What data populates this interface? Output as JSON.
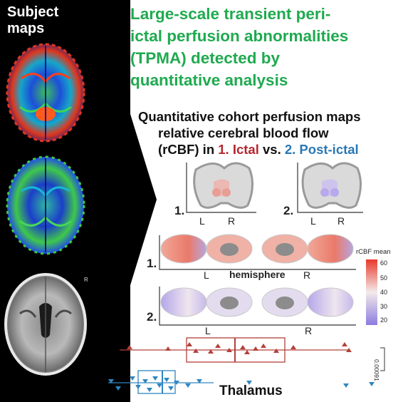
{
  "left_panel": {
    "title_line1": "Subject",
    "title_line2": "maps"
  },
  "headline": {
    "line1": "Large-scale transient peri-",
    "line2": "ictal perfusion abnormalities",
    "line3": "(TPMA) detected by",
    "line4": "quantitative analysis"
  },
  "subtitle": {
    "line1": "Quantitative cohort perfusion maps",
    "line2": "relative cerebral blood flow",
    "line3_prefix": "(rCBF) in ",
    "ictal": "1. Ictal",
    "vs": " vs. ",
    "postictal": "2. Post-ictal"
  },
  "coronal": {
    "label1": "1.",
    "label2": "2.",
    "L": "L",
    "R": "R"
  },
  "surface": {
    "row1_label": "1.",
    "row2_label": "2.",
    "hemisphere": "hemisphere",
    "L": "L",
    "R": "R"
  },
  "colorbar": {
    "title": "rCBF mean",
    "ticks": [
      "60",
      "50",
      "40",
      "30",
      "20"
    ],
    "colors": {
      "high": "#e8392b",
      "mid": "#f5f0f0",
      "low": "#8d7be0"
    }
  },
  "boxplot": {
    "label": "Thalamus",
    "scale_label": "0.00091",
    "ictal_color": "#b3403a",
    "postictal_color": "#2f86c0"
  },
  "image_marker": "R"
}
